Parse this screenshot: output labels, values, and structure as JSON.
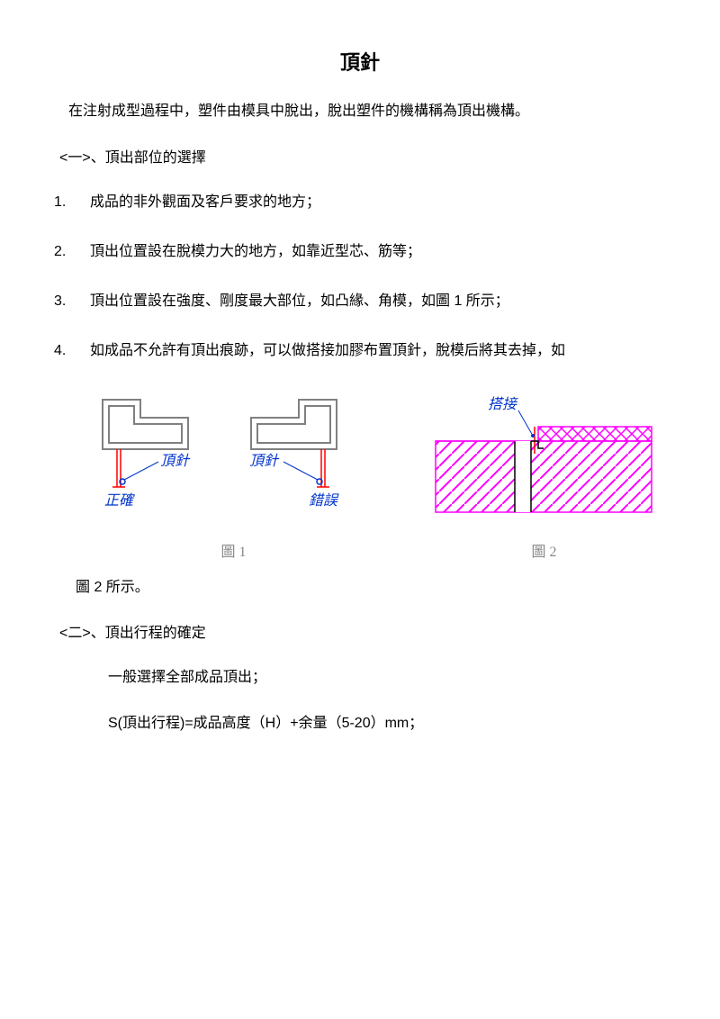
{
  "title": "頂針",
  "intro": "在注射成型過程中，塑件由模具中脫出，脫出塑件的機構稱為頂出機構。",
  "section1_head": "<一>、頂出部位的選擇",
  "items": [
    {
      "num": "1.",
      "text": "成品的非外觀面及客戶要求的地方；"
    },
    {
      "num": "2.",
      "text": "頂出位置設在脫模力大的地方，如靠近型芯、筋等；"
    },
    {
      "num": "3.",
      "text": "頂出位置設在強度、剛度最大部位，如凸緣、角模，如圖 1 所示；"
    },
    {
      "num": "4.",
      "text": "如成品不允許有頂出痕跡，可以做搭接加膠布置頂針，脫模后將其去掉，如"
    }
  ],
  "fig1": {
    "caption": "圖 1",
    "labels": {
      "correct": "正確",
      "pin": "頂針",
      "wrong_pin": "頂針",
      "wrong": "錯誤"
    },
    "colors": {
      "outline": "#808080",
      "red": "#ff0000",
      "blue": "#0033cc",
      "label": "#0033cc"
    }
  },
  "fig2": {
    "caption": "圖 2",
    "labels": {
      "joint": "搭接"
    },
    "colors": {
      "magenta": "#ff00ff",
      "red": "#ff0000",
      "blue": "#0033cc",
      "black": "#000000",
      "label": "#0033cc"
    }
  },
  "after_fig": "圖 2 所示。",
  "section2_head": "<二>、頂出行程的確定",
  "p1": "一般選擇全部成品頂出；",
  "p2": "S(頂出行程)=成品高度（H）+余量（5-20）mm；"
}
